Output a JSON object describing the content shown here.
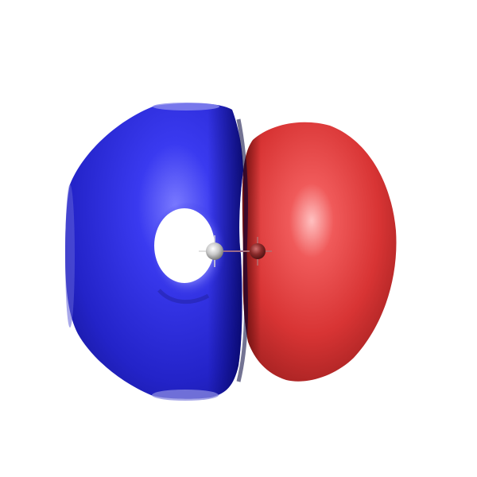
{
  "scene": {
    "background_color": "#ffffff",
    "negative_lobe": {
      "color": "#2020d0",
      "highlight_color": "#8080ff",
      "shadow_color": "#08087a"
    },
    "positive_lobe": {
      "color": "#e03838",
      "highlight_color": "#ffb0b0",
      "shadow_color": "#7a1010"
    },
    "atoms": [
      {
        "element": "hydrogen",
        "color": "#c8c8c8"
      },
      {
        "element": "oxygen",
        "color": "#8a2a2a"
      }
    ]
  }
}
